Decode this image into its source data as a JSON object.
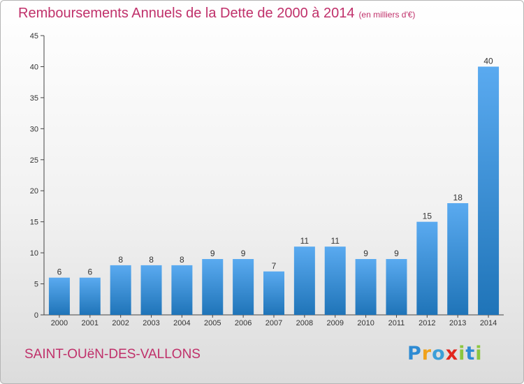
{
  "title": "Remboursements Annuels de la Dette de 2000 à 2014",
  "subtitle": "(en milliers d'€)",
  "commune": "SAINT-OUëN-DES-VALLONS",
  "logo": {
    "letters": [
      "P",
      "r",
      "o",
      "x",
      "i",
      "t",
      "i"
    ],
    "colors": [
      "#2e8bd3",
      "#f0a21c",
      "#3c9fd8",
      "#e2261d",
      "#8cc63f",
      "#2e8bd3",
      "#8cc63f"
    ]
  },
  "colors": {
    "accent": "#c0306a",
    "bar_light": "#5aaaf0",
    "bar_dark": "#1f74b8",
    "axis": "#444444"
  },
  "chart_data": {
    "type": "bar",
    "categories": [
      "2000",
      "2001",
      "2002",
      "2003",
      "2004",
      "2005",
      "2006",
      "2007",
      "2008",
      "2009",
      "2010",
      "2011",
      "2012",
      "2013",
      "2014"
    ],
    "values": [
      6,
      6,
      8,
      8,
      8,
      9,
      9,
      7,
      11,
      11,
      9,
      9,
      15,
      18,
      40
    ],
    "yticks": [
      0,
      5,
      10,
      15,
      20,
      25,
      30,
      35,
      40,
      45
    ],
    "ylim": [
      0,
      45
    ],
    "grid": false,
    "data_labels": true
  }
}
